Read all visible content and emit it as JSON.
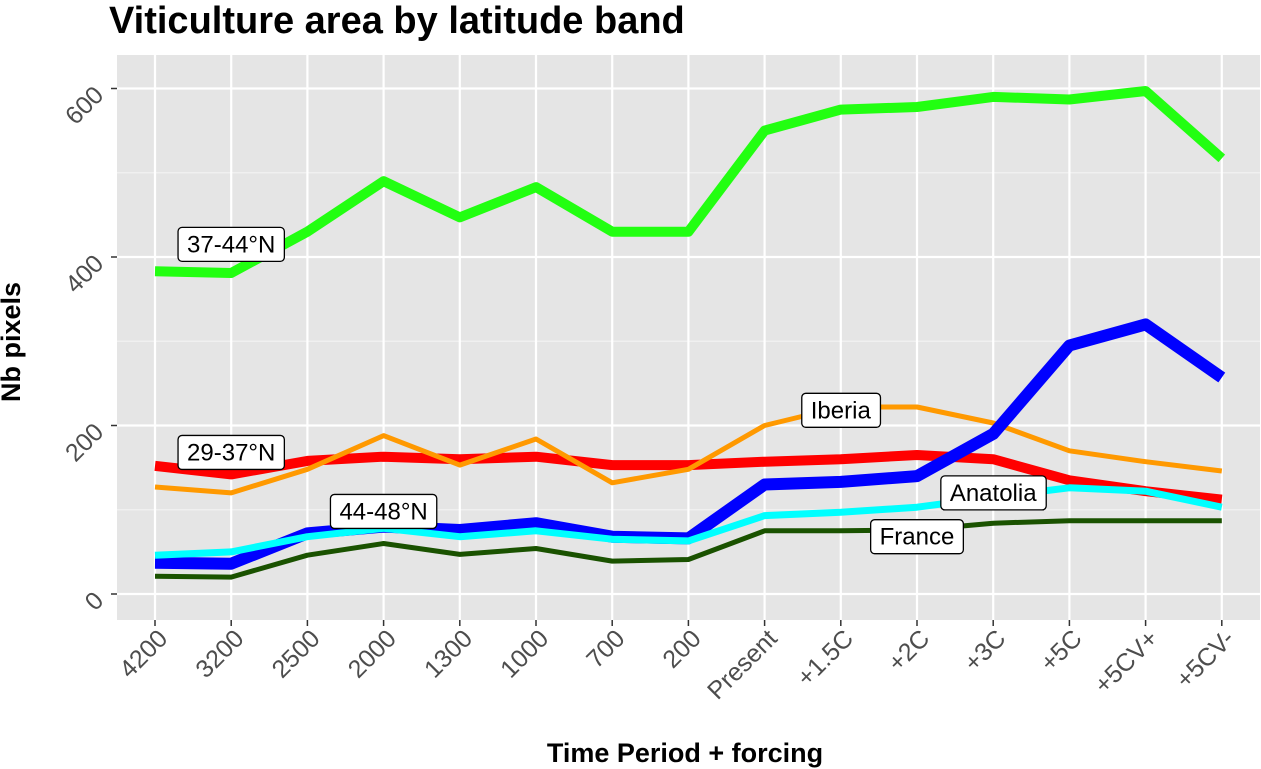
{
  "chart_data": {
    "type": "line",
    "title": "Viticulture area by latitude band",
    "xlabel": "Time Period + forcing",
    "ylabel": "Nb pixels",
    "categories": [
      "4200",
      "3200",
      "2500",
      "2000",
      "1300",
      "1000",
      "700",
      "200",
      "Present",
      "+1.5C",
      "+2C",
      "+3C",
      "+5C",
      "+5CV+",
      "+5CV-"
    ],
    "yticks": [
      0,
      200,
      400,
      600
    ],
    "ylim": [
      -33,
      640
    ],
    "grid": true,
    "legend": "none (direct labels)",
    "series": [
      {
        "name": "37-44°N",
        "color": "#22ff11",
        "width": 10,
        "values": [
          383,
          381,
          430,
          490,
          447,
          483,
          430,
          430,
          550,
          575,
          578,
          590,
          587,
          597,
          517
        ]
      },
      {
        "name": "29-37°N",
        "color": "#ff0000",
        "width": 10,
        "values": [
          152,
          142,
          158,
          163,
          160,
          163,
          153,
          153,
          157,
          160,
          165,
          160,
          135,
          122,
          112
        ]
      },
      {
        "name": "Iberia",
        "color": "#ff9900",
        "width": 5,
        "values": [
          127,
          120,
          148,
          188,
          153,
          184,
          132,
          148,
          200,
          222,
          222,
          203,
          170,
          157,
          146
        ]
      },
      {
        "name": "44-48°N",
        "color": "#0000ff",
        "width": 12,
        "values": [
          37,
          36,
          72,
          80,
          76,
          84,
          68,
          66,
          130,
          133,
          140,
          190,
          295,
          320,
          257
        ]
      },
      {
        "name": "Anatolia",
        "color": "#00ffff",
        "width": 7,
        "values": [
          46,
          50,
          68,
          78,
          68,
          75,
          65,
          63,
          93,
          97,
          103,
          115,
          126,
          122,
          103
        ]
      },
      {
        "name": "France",
        "color": "#1a5200",
        "width": 5,
        "values": [
          21,
          20,
          46,
          60,
          47,
          54,
          39,
          41,
          75,
          75,
          76,
          84,
          87,
          87,
          87
        ]
      }
    ],
    "annotations": [
      {
        "text": "37-44°N",
        "x": "3200",
        "y": 415
      },
      {
        "text": "29-37°N",
        "x": "3200",
        "y": 168
      },
      {
        "text": "44-48°N",
        "x": "2000",
        "y": 98
      },
      {
        "text": "Iberia",
        "x": "+1.5C",
        "y": 218
      },
      {
        "text": "Anatolia",
        "x": "+3C",
        "y": 120
      },
      {
        "text": "France",
        "x": "+2C",
        "y": 68
      }
    ]
  }
}
